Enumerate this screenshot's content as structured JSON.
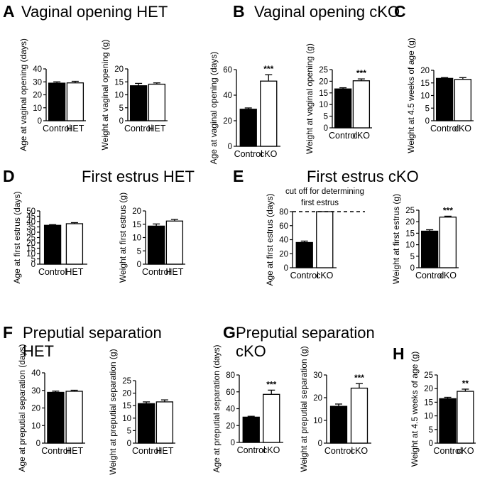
{
  "colors": {
    "control": "#000000",
    "mutant": "#ffffff",
    "stroke": "#000000"
  },
  "panels": [
    {
      "letter": "A",
      "title_lines": [
        "Vaginal opening HET"
      ]
    },
    {
      "letter": "B",
      "title_lines": [
        "Vaginal opening cKO"
      ]
    },
    {
      "letter": "C",
      "title_lines": []
    },
    {
      "letter": "D",
      "title_lines": [
        "First estrus HET"
      ]
    },
    {
      "letter": "E",
      "title_lines": [
        "First estrus cKO"
      ]
    },
    {
      "letter": "F",
      "title_lines": [
        "Preputial separation",
        "HET"
      ]
    },
    {
      "letter": "G",
      "title_lines": [
        "Preputial separation",
        "cKO"
      ]
    },
    {
      "letter": "H",
      "title_lines": []
    }
  ],
  "annotation": {
    "cutoff_lines": [
      "cut off for determining",
      "first estrus"
    ]
  },
  "chart_data": [
    {
      "id": "A1",
      "type": "bar",
      "ylabel": "Age at vaginal opening (days)",
      "ylim": [
        0,
        40
      ],
      "yticks": [
        0,
        10,
        20,
        30,
        40
      ],
      "categories": [
        "Control",
        "HET"
      ],
      "values": [
        29,
        29.2
      ],
      "errors": [
        1.0,
        1.2
      ],
      "fills": [
        "control",
        "mutant"
      ],
      "sig": [
        null,
        null
      ]
    },
    {
      "id": "A2",
      "type": "bar",
      "ylabel": "Weight at vaginal opening (g)",
      "ylim": [
        0,
        20
      ],
      "yticks": [
        0,
        5,
        10,
        15,
        20
      ],
      "categories": [
        "Control",
        "HET"
      ],
      "values": [
        13.5,
        14.1
      ],
      "errors": [
        0.9,
        0.5
      ],
      "fills": [
        "control",
        "mutant"
      ],
      "sig": [
        null,
        null
      ]
    },
    {
      "id": "B1",
      "type": "bar",
      "ylabel": "Age at vaginal opening (days)",
      "ylim": [
        0,
        60
      ],
      "yticks": [
        0,
        20,
        40,
        60
      ],
      "categories": [
        "Control",
        "cKO"
      ],
      "values": [
        29,
        51
      ],
      "errors": [
        1.0,
        5.0
      ],
      "fills": [
        "control",
        "mutant"
      ],
      "sig": [
        null,
        "***"
      ]
    },
    {
      "id": "B2",
      "type": "bar",
      "ylabel": "Weight at vaginal opening (g)",
      "ylim": [
        0,
        25
      ],
      "yticks": [
        0,
        5,
        10,
        15,
        20,
        25
      ],
      "categories": [
        "Control",
        "cKO"
      ],
      "values": [
        16.7,
        20.2
      ],
      "errors": [
        0.5,
        0.8
      ],
      "fills": [
        "control",
        "mutant"
      ],
      "sig": [
        null,
        "***"
      ]
    },
    {
      "id": "C1",
      "type": "bar",
      "ylabel": "Weight at 4.5 weeks of age (g)",
      "ylim": [
        0,
        20
      ],
      "yticks": [
        0,
        5,
        10,
        15,
        20
      ],
      "categories": [
        "Control",
        "cKO"
      ],
      "values": [
        16.8,
        16.4
      ],
      "errors": [
        0.3,
        0.7
      ],
      "fills": [
        "control",
        "mutant"
      ],
      "sig": [
        null,
        null
      ]
    },
    {
      "id": "D1",
      "type": "bar",
      "ylabel": "Age at first estrus (days)",
      "ylim": [
        0,
        50
      ],
      "yticks": [
        0,
        5,
        10,
        15,
        20,
        25,
        30,
        35,
        40,
        45,
        50
      ],
      "categories": [
        "Control",
        "HET"
      ],
      "values": [
        36.5,
        38
      ],
      "errors": [
        0.6,
        1.0
      ],
      "fills": [
        "control",
        "mutant"
      ],
      "sig": [
        null,
        null
      ]
    },
    {
      "id": "D2",
      "type": "bar",
      "ylabel": "Weight at first estrus (g)",
      "ylim": [
        0,
        20
      ],
      "yticks": [
        0,
        5,
        10,
        15,
        20
      ],
      "categories": [
        "Control",
        "HET"
      ],
      "values": [
        14.3,
        16.2
      ],
      "errors": [
        0.8,
        0.6
      ],
      "fills": [
        "control",
        "mutant"
      ],
      "sig": [
        null,
        null
      ]
    },
    {
      "id": "E1",
      "type": "bar",
      "ylabel": "Age at first estrus (days)",
      "ylim": [
        0,
        80
      ],
      "yticks": [
        0,
        20,
        40,
        60,
        80
      ],
      "categories": [
        "Control",
        "cKO"
      ],
      "values": [
        36,
        80
      ],
      "errors": [
        2.0,
        0
      ],
      "fills": [
        "control",
        "mutant"
      ],
      "sig": [
        null,
        null
      ],
      "cutoff": 80
    },
    {
      "id": "E2",
      "type": "bar",
      "ylabel": "Weight at first estrus (g)",
      "ylim": [
        0,
        25
      ],
      "yticks": [
        0,
        5,
        10,
        15,
        20,
        25
      ],
      "categories": [
        "Control",
        "cKO"
      ],
      "values": [
        15.9,
        22
      ],
      "errors": [
        0.6,
        0.4
      ],
      "fills": [
        "control",
        "mutant"
      ],
      "sig": [
        null,
        "***"
      ]
    },
    {
      "id": "F1",
      "type": "bar",
      "ylabel": "Age at preputial separation (days)",
      "ylim": [
        0,
        40
      ],
      "yticks": [
        0,
        10,
        20,
        30,
        40
      ],
      "categories": [
        "Control",
        "HET"
      ],
      "values": [
        28.9,
        29.5
      ],
      "errors": [
        0.7,
        0.6
      ],
      "fills": [
        "control",
        "mutant"
      ],
      "sig": [
        null,
        null
      ]
    },
    {
      "id": "F2",
      "type": "bar",
      "ylabel": "Weight at preputial separation (g)",
      "ylim": [
        0,
        25
      ],
      "yticks": [
        0,
        5,
        10,
        15,
        20,
        25
      ],
      "categories": [
        "Control",
        "HET"
      ],
      "values": [
        15.8,
        16.5
      ],
      "errors": [
        0.7,
        0.8
      ],
      "fills": [
        "control",
        "mutant"
      ],
      "sig": [
        null,
        null
      ]
    },
    {
      "id": "G1",
      "type": "bar",
      "ylabel": "Age at preputial separation (days)",
      "ylim": [
        0,
        80
      ],
      "yticks": [
        0,
        20,
        40,
        60,
        80
      ],
      "categories": [
        "Control",
        "cKO"
      ],
      "values": [
        30,
        57
      ],
      "errors": [
        1.0,
        5.0
      ],
      "fills": [
        "control",
        "mutant"
      ],
      "sig": [
        null,
        "***"
      ]
    },
    {
      "id": "G2",
      "type": "bar",
      "ylabel": "Weight at preputial separation (g)",
      "ylim": [
        0,
        30
      ],
      "yticks": [
        0,
        10,
        20,
        30
      ],
      "categories": [
        "Control",
        "cKO"
      ],
      "values": [
        16.2,
        24.2
      ],
      "errors": [
        1.0,
        2.0
      ],
      "fills": [
        "control",
        "mutant"
      ],
      "sig": [
        null,
        "***"
      ]
    },
    {
      "id": "H1",
      "type": "bar",
      "ylabel": "Weight at 4.5 weeks of age (g)",
      "ylim": [
        0,
        25
      ],
      "yticks": [
        0,
        5,
        10,
        15,
        20,
        25
      ],
      "categories": [
        "Control",
        "cKO"
      ],
      "values": [
        16.3,
        19
      ],
      "errors": [
        0.5,
        0.8
      ],
      "fills": [
        "control",
        "mutant"
      ],
      "sig": [
        null,
        "**"
      ]
    }
  ]
}
